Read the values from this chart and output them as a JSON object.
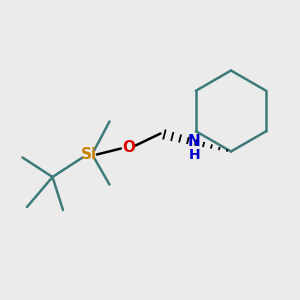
{
  "background_color": "#ebebeb",
  "bond_color": "#3d7a7a",
  "bond_lw": 1.8,
  "atom_colors": {
    "Si": "#c88000",
    "O": "#dd0000",
    "N": "#0000cc",
    "C": "#000000"
  },
  "figsize": [
    3.0,
    3.0
  ],
  "dpi": 100
}
